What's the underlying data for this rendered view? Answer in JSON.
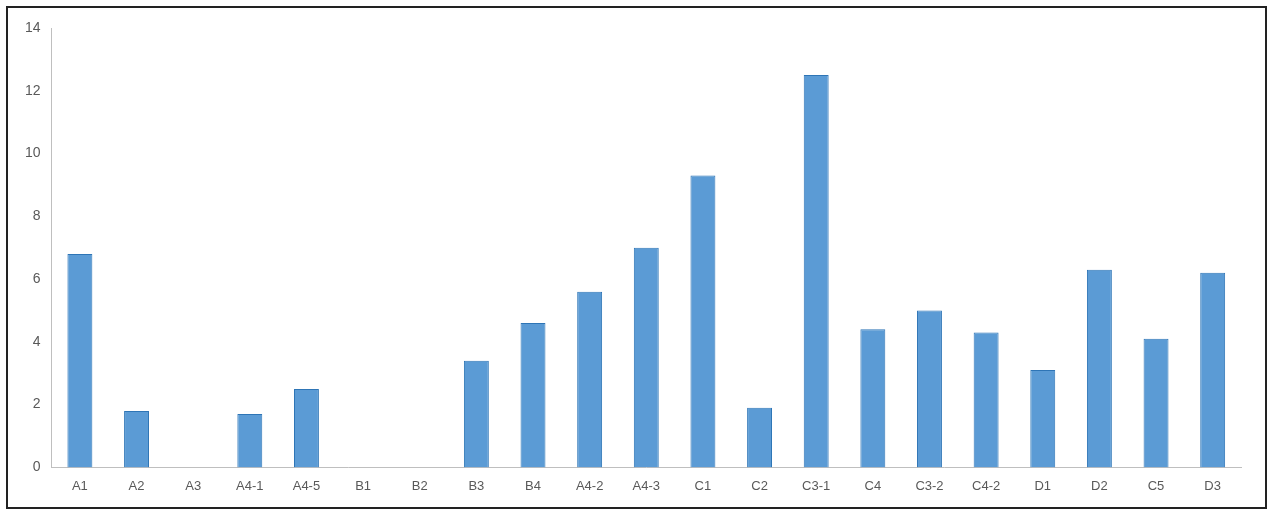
{
  "chart_data": {
    "type": "bar",
    "categories": [
      "A1",
      "A2",
      "A3",
      "A4-1",
      "A4-5",
      "B1",
      "B2",
      "B3",
      "B4",
      "A4-2",
      "A4-3",
      "C1",
      "C2",
      "C3-1",
      "C4",
      "C3-2",
      "C4-2",
      "D1",
      "D2",
      "C5",
      "D3"
    ],
    "values": [
      6.8,
      1.8,
      0,
      1.7,
      2.5,
      0,
      0,
      3.4,
      4.6,
      5.6,
      7.0,
      9.3,
      1.9,
      12.5,
      4.4,
      5.0,
      4.3,
      3.1,
      6.3,
      4.1,
      6.2
    ],
    "color": "#5b9bd5",
    "ylim": [
      0,
      14
    ],
    "yticks": [
      0,
      2,
      4,
      6,
      8,
      10,
      12,
      14
    ],
    "grid": false
  }
}
